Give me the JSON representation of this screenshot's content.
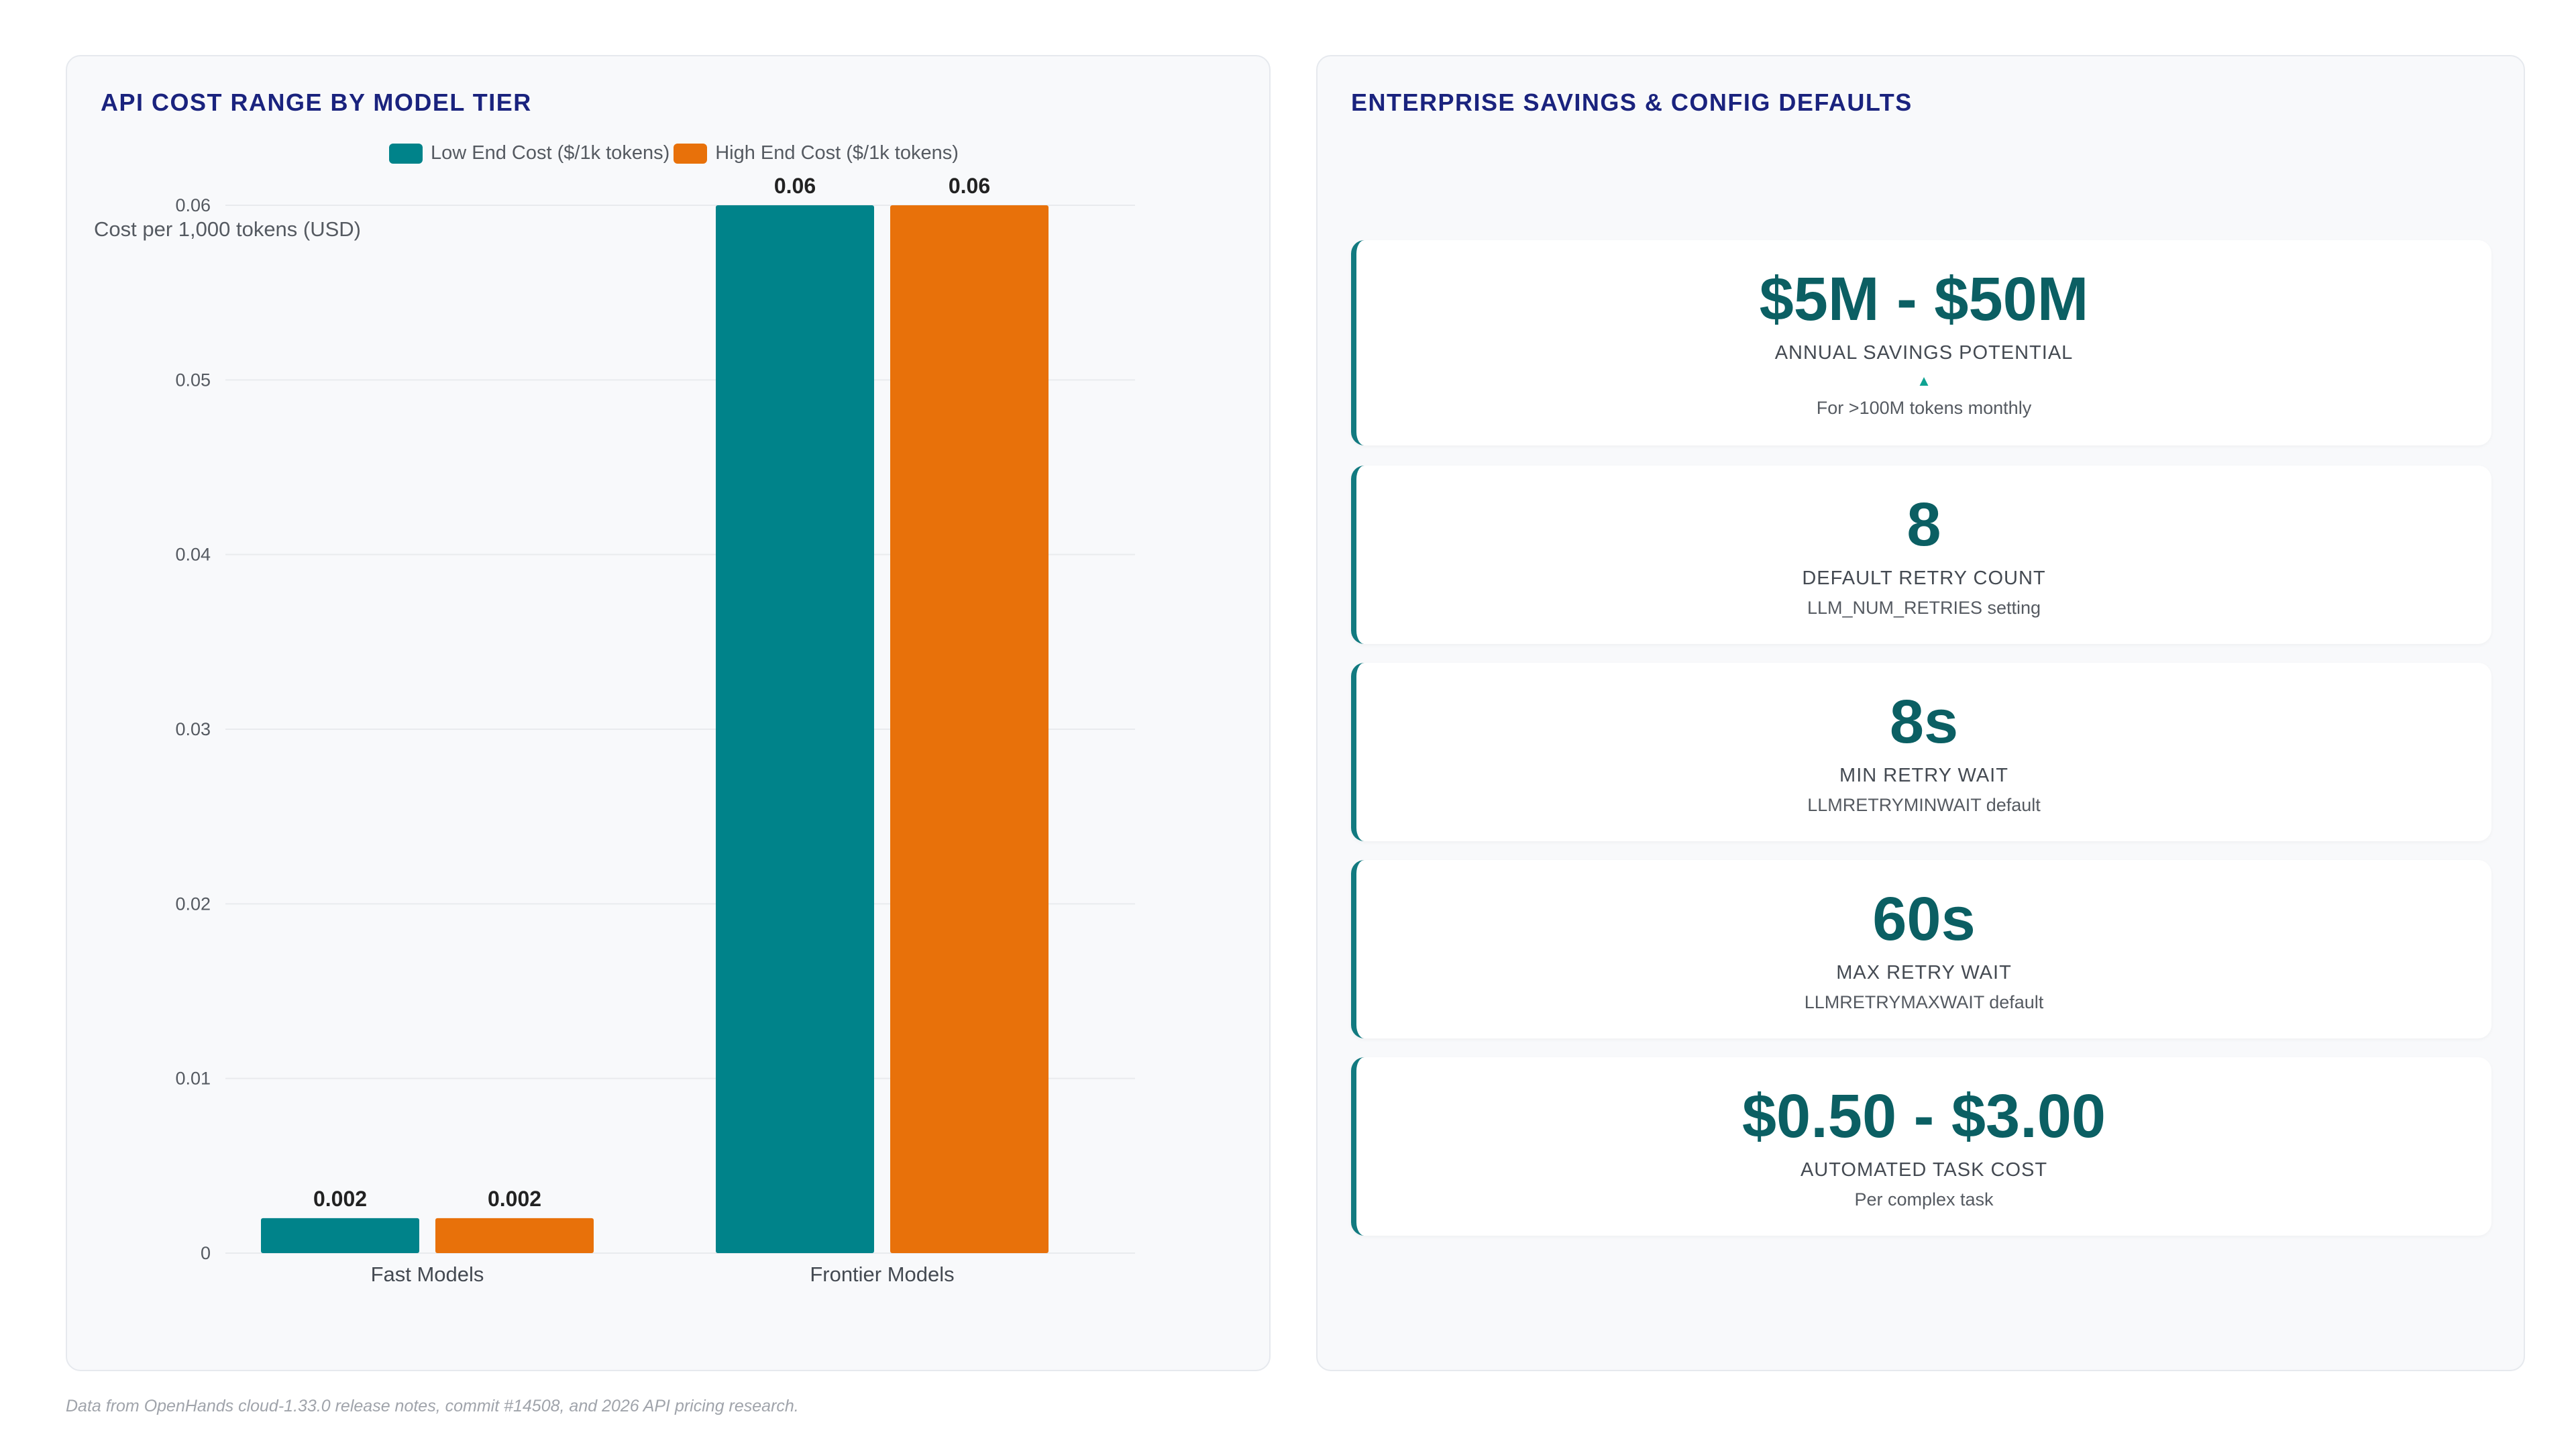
{
  "left_panel": {
    "title": "API COST RANGE BY MODEL TIER"
  },
  "chart_data": {
    "type": "bar",
    "title": "API COST RANGE BY MODEL TIER",
    "categories": [
      "Fast Models",
      "Frontier Models"
    ],
    "series": [
      {
        "name": "Low End Cost ($/1k tokens)",
        "values": [
          0.002,
          0.06
        ],
        "color": "#00838a"
      },
      {
        "name": "High End Cost ($/1k tokens)",
        "values": [
          0.002,
          0.06
        ],
        "color": "#e8710a"
      }
    ],
    "data_labels": [
      [
        "0.002",
        "0.06"
      ],
      [
        "0.002",
        "0.06"
      ]
    ],
    "xlabel": "",
    "ylabel": "Cost per 1,000 tokens (USD)",
    "ylim": [
      0,
      0.06
    ],
    "yticks": [
      "0",
      "0.01",
      "0.02",
      "0.03",
      "0.04",
      "0.05",
      "0.06"
    ],
    "grid": true,
    "legend": "top"
  },
  "right_panel": {
    "title": "ENTERPRISE SAVINGS & CONFIG DEFAULTS",
    "cards": [
      {
        "value": "$5M - $50M",
        "label": "ANNUAL SAVINGS POTENTIAL",
        "arrow": "▲",
        "sub": "For >100M tokens monthly"
      },
      {
        "value": "8",
        "label": "DEFAULT RETRY COUNT",
        "sub": "LLM_NUM_RETRIES setting"
      },
      {
        "value": "8s",
        "label": "MIN RETRY WAIT",
        "sub": "LLMRETRYMINWAIT default"
      },
      {
        "value": "60s",
        "label": "MAX RETRY WAIT",
        "sub": "LLMRETRYMAXWAIT default"
      },
      {
        "value": "$0.50 - $3.00",
        "label": "AUTOMATED TASK COST",
        "sub": "Per complex task"
      }
    ]
  },
  "footnote": "Data from OpenHands cloud-1.33.0 release notes, commit #14508, and 2026 API pricing research."
}
